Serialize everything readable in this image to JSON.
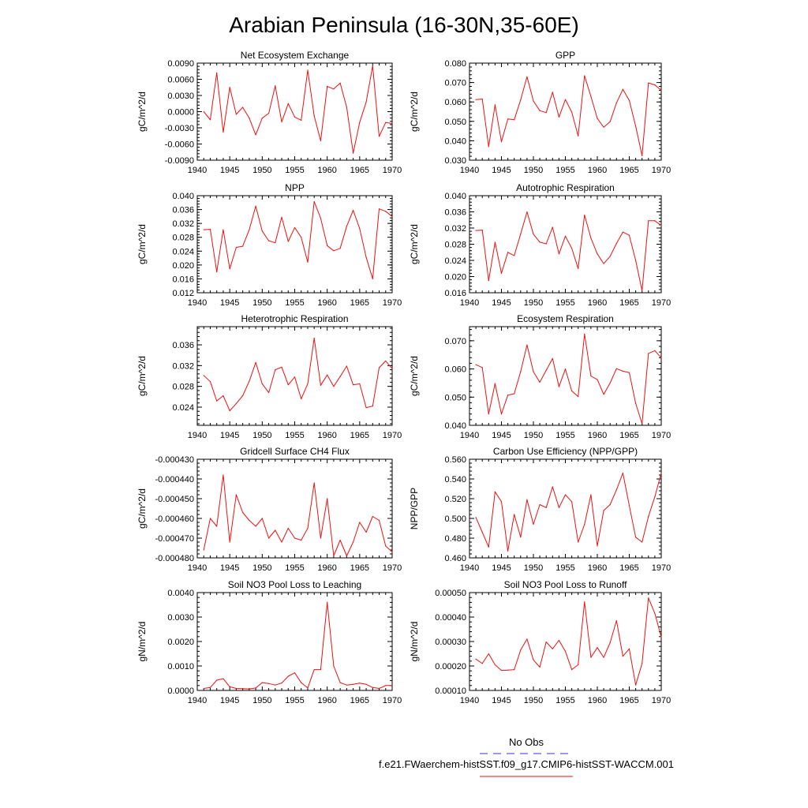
{
  "figure": {
    "title": "Arabian Peninsula (16-30N,35-60E)",
    "legend": [
      {
        "label": "No Obs",
        "color": "#3333cc",
        "dash": true
      },
      {
        "label": "f.e21.FWaerchem-histSST.f09_g17.CMIP6-histSST-WACCM.001",
        "color": "#ee1111",
        "dash": false
      }
    ]
  },
  "chart_data": [
    {
      "type": "line",
      "title": "Net Ecosystem Exchange",
      "ylabel": "gC/m^2/d",
      "xlim": [
        1940,
        1970
      ],
      "ylim": [
        -0.009,
        0.009
      ],
      "xticks": [
        "1940",
        "1945",
        "1950",
        "1955",
        "1960",
        "1965",
        "1970"
      ],
      "yticks": [
        "-0.0090",
        "-0.0060",
        "-0.0030",
        "0.0000",
        "0.0030",
        "0.0060",
        "0.0090"
      ],
      "ytick_values": [
        -0.009,
        -0.006,
        -0.003,
        0,
        0.003,
        0.006,
        0.009
      ],
      "x": [
        1941,
        1942,
        1943,
        1944,
        1945,
        1946,
        1947,
        1948,
        1949,
        1950,
        1951,
        1952,
        1953,
        1954,
        1955,
        1956,
        1957,
        1958,
        1959,
        1960,
        1961,
        1962,
        1963,
        1964,
        1965,
        1966,
        1967,
        1968,
        1969,
        1970
      ],
      "series": [
        {
          "values": [
            0.0,
            -0.0015,
            0.0072,
            -0.0038,
            0.0045,
            -0.0005,
            0.0008,
            -0.0012,
            -0.0043,
            -0.0012,
            -0.0003,
            0.0048,
            -0.0019,
            0.0015,
            -0.001,
            -0.0016,
            0.0077,
            -0.0008,
            -0.0054,
            0.0047,
            0.0042,
            0.0053,
            0.0008,
            -0.0077,
            -0.002,
            0.0018,
            0.0085,
            -0.0046,
            -0.002,
            -0.0022
          ],
          "color": "#ee1111"
        }
      ]
    },
    {
      "type": "line",
      "title": "GPP",
      "ylabel": "gC/m^2/d",
      "xlim": [
        1940,
        1970
      ],
      "ylim": [
        0.03,
        0.08
      ],
      "xticks": [
        "1940",
        "1945",
        "1950",
        "1955",
        "1960",
        "1965",
        "1970"
      ],
      "yticks": [
        "0.030",
        "0.040",
        "0.050",
        "0.060",
        "0.070",
        "0.080"
      ],
      "ytick_values": [
        0.03,
        0.04,
        0.05,
        0.06,
        0.07,
        0.08
      ],
      "x": [
        1941,
        1942,
        1943,
        1944,
        1945,
        1946,
        1947,
        1948,
        1949,
        1950,
        1951,
        1952,
        1953,
        1954,
        1955,
        1956,
        1957,
        1958,
        1959,
        1960,
        1961,
        1962,
        1963,
        1964,
        1965,
        1966,
        1967,
        1968,
        1969,
        1970
      ],
      "series": [
        {
          "values": [
            0.0612,
            0.0615,
            0.037,
            0.0585,
            0.0395,
            0.0512,
            0.0508,
            0.061,
            0.073,
            0.0605,
            0.0555,
            0.0545,
            0.065,
            0.0522,
            0.0612,
            0.0548,
            0.0425,
            0.0735,
            0.0628,
            0.0515,
            0.047,
            0.0498,
            0.0595,
            0.0665,
            0.0608,
            0.0475,
            0.0323,
            0.0698,
            0.0688,
            0.066
          ],
          "color": "#ee1111"
        }
      ]
    },
    {
      "type": "line",
      "title": "NPP",
      "ylabel": "gC/m^2/d",
      "xlim": [
        1940,
        1970
      ],
      "ylim": [
        0.012,
        0.04
      ],
      "xticks": [
        "1940",
        "1945",
        "1950",
        "1955",
        "1960",
        "1965",
        "1970"
      ],
      "yticks": [
        "0.012",
        "0.016",
        "0.020",
        "0.024",
        "0.028",
        "0.032",
        "0.036",
        "0.040"
      ],
      "ytick_values": [
        0.012,
        0.016,
        0.02,
        0.024,
        0.028,
        0.032,
        0.036,
        0.04
      ],
      "x": [
        1941,
        1942,
        1943,
        1944,
        1945,
        1946,
        1947,
        1948,
        1949,
        1950,
        1951,
        1952,
        1953,
        1954,
        1955,
        1956,
        1957,
        1958,
        1959,
        1960,
        1961,
        1962,
        1963,
        1964,
        1965,
        1966,
        1967,
        1968,
        1969,
        1970
      ],
      "series": [
        {
          "values": [
            0.0302,
            0.0303,
            0.018,
            0.0302,
            0.0189,
            0.0251,
            0.0254,
            0.0302,
            0.037,
            0.0298,
            0.027,
            0.0264,
            0.0338,
            0.0268,
            0.0308,
            0.028,
            0.0208,
            0.0383,
            0.0335,
            0.0256,
            0.0241,
            0.0248,
            0.0312,
            0.0358,
            0.0305,
            0.0222,
            0.016,
            0.0362,
            0.0355,
            0.034
          ],
          "color": "#ee1111"
        }
      ]
    },
    {
      "type": "line",
      "title": "Autotrophic Respiration",
      "ylabel": "gC/m^2/d",
      "xlim": [
        1940,
        1970
      ],
      "ylim": [
        0.016,
        0.04
      ],
      "xticks": [
        "1940",
        "1945",
        "1950",
        "1955",
        "1960",
        "1965",
        "1970"
      ],
      "yticks": [
        "0.016",
        "0.020",
        "0.024",
        "0.028",
        "0.032",
        "0.036",
        "0.040"
      ],
      "ytick_values": [
        0.016,
        0.02,
        0.024,
        0.028,
        0.032,
        0.036,
        0.04
      ],
      "x": [
        1941,
        1942,
        1943,
        1944,
        1945,
        1946,
        1947,
        1948,
        1949,
        1950,
        1951,
        1952,
        1953,
        1954,
        1955,
        1956,
        1957,
        1958,
        1959,
        1960,
        1961,
        1962,
        1963,
        1964,
        1965,
        1966,
        1967,
        1968,
        1969,
        1970
      ],
      "series": [
        {
          "values": [
            0.0314,
            0.0315,
            0.019,
            0.0285,
            0.0208,
            0.026,
            0.0252,
            0.0305,
            0.036,
            0.0305,
            0.0285,
            0.0281,
            0.0322,
            0.0256,
            0.03,
            0.027,
            0.022,
            0.0352,
            0.0295,
            0.0256,
            0.0232,
            0.025,
            0.0282,
            0.031,
            0.0302,
            0.024,
            0.0165,
            0.0338,
            0.0338,
            0.0326
          ],
          "color": "#ee1111"
        }
      ]
    },
    {
      "type": "line",
      "title": "Heterotrophic Respiration",
      "ylabel": "gC/m^2/d",
      "xlim": [
        1940,
        1970
      ],
      "ylim": [
        0.0205,
        0.0395
      ],
      "xticks": [
        "1940",
        "1945",
        "1950",
        "1955",
        "1960",
        "1965",
        "1970"
      ],
      "yticks": [
        "0.024",
        "0.028",
        "0.032",
        "0.036"
      ],
      "ytick_values": [
        0.024,
        0.028,
        0.032,
        0.036
      ],
      "x": [
        1941,
        1942,
        1943,
        1944,
        1945,
        1946,
        1947,
        1948,
        1949,
        1950,
        1951,
        1952,
        1953,
        1954,
        1955,
        1956,
        1957,
        1958,
        1959,
        1960,
        1961,
        1962,
        1963,
        1964,
        1965,
        1966,
        1967,
        1968,
        1969,
        1970
      ],
      "series": [
        {
          "values": [
            0.0301,
            0.0289,
            0.0252,
            0.0262,
            0.0233,
            0.0247,
            0.0262,
            0.029,
            0.0326,
            0.0285,
            0.0268,
            0.0312,
            0.0317,
            0.0283,
            0.0298,
            0.0256,
            0.0285,
            0.0373,
            0.0282,
            0.0302,
            0.028,
            0.0299,
            0.0319,
            0.0283,
            0.0285,
            0.0239,
            0.0242,
            0.0316,
            0.0329,
            0.0314
          ],
          "color": "#ee1111"
        }
      ]
    },
    {
      "type": "line",
      "title": "Ecosystem Respiration",
      "ylabel": "gC/m^2/d",
      "xlim": [
        1940,
        1970
      ],
      "ylim": [
        0.04,
        0.075
      ],
      "xticks": [
        "1940",
        "1945",
        "1950",
        "1955",
        "1960",
        "1965",
        "1970"
      ],
      "yticks": [
        "0.040",
        "0.050",
        "0.060",
        "0.070"
      ],
      "ytick_values": [
        0.04,
        0.05,
        0.06,
        0.07
      ],
      "x": [
        1941,
        1942,
        1943,
        1944,
        1945,
        1946,
        1947,
        1948,
        1949,
        1950,
        1951,
        1952,
        1953,
        1954,
        1955,
        1956,
        1957,
        1958,
        1959,
        1960,
        1961,
        1962,
        1963,
        1964,
        1965,
        1966,
        1967,
        1968,
        1969,
        1970
      ],
      "series": [
        {
          "values": [
            0.0615,
            0.0605,
            0.044,
            0.0548,
            0.044,
            0.0507,
            0.0512,
            0.059,
            0.0685,
            0.059,
            0.0553,
            0.0595,
            0.0637,
            0.0537,
            0.06,
            0.0522,
            0.0502,
            0.0724,
            0.0575,
            0.0562,
            0.051,
            0.055,
            0.0601,
            0.0592,
            0.0587,
            0.0478,
            0.0406,
            0.0655,
            0.0665,
            0.064
          ],
          "color": "#ee1111"
        }
      ]
    },
    {
      "type": "line",
      "title": "Gridcell Surface CH4 Flux",
      "ylabel": "gC/m^2/d",
      "xlim": [
        1940,
        1970
      ],
      "ylim": [
        -0.00048,
        -0.00043
      ],
      "xticks": [
        "1940",
        "1945",
        "1950",
        "1955",
        "1960",
        "1965",
        "1970"
      ],
      "yticks": [
        "-0.000480",
        "-0.000470",
        "-0.000460",
        "-0.000450",
        "-0.000440",
        "-0.000430"
      ],
      "ytick_values": [
        -0.00048,
        -0.00047,
        -0.00046,
        -0.00045,
        -0.00044,
        -0.00043
      ],
      "x": [
        1941,
        1942,
        1943,
        1944,
        1945,
        1946,
        1947,
        1948,
        1949,
        1950,
        1951,
        1952,
        1953,
        1954,
        1955,
        1956,
        1957,
        1958,
        1959,
        1960,
        1961,
        1962,
        1963,
        1964,
        1965,
        1966,
        1967,
        1968,
        1969,
        1970
      ],
      "series": [
        {
          "values": [
            -0.000476,
            -0.00046,
            -0.000464,
            -0.000438,
            -0.000472,
            -0.000448,
            -0.000457,
            -0.000461,
            -0.000464,
            -0.00046,
            -0.00047,
            -0.000466,
            -0.000472,
            -0.000465,
            -0.00047,
            -0.000471,
            -0.000465,
            -0.000442,
            -0.00047,
            -0.00045,
            -0.000479,
            -0.000471,
            -0.000479,
            -0.000472,
            -0.000462,
            -0.000467,
            -0.000459,
            -0.000461,
            -0.000474,
            -0.000477
          ],
          "color": "#ee1111"
        }
      ]
    },
    {
      "type": "line",
      "title": "Carbon Use Efficiency (NPP/GPP)",
      "ylabel": "NPP/GPP",
      "xlim": [
        1940,
        1970
      ],
      "ylim": [
        0.46,
        0.56
      ],
      "xticks": [
        "1940",
        "1945",
        "1950",
        "1955",
        "1960",
        "1965",
        "1970"
      ],
      "yticks": [
        "0.460",
        "0.480",
        "0.500",
        "0.520",
        "0.540",
        "0.560"
      ],
      "ytick_values": [
        0.46,
        0.48,
        0.5,
        0.52,
        0.54,
        0.56
      ],
      "x": [
        1941,
        1942,
        1943,
        1944,
        1945,
        1946,
        1947,
        1948,
        1949,
        1950,
        1951,
        1952,
        1953,
        1954,
        1955,
        1956,
        1957,
        1958,
        1959,
        1960,
        1961,
        1962,
        1963,
        1964,
        1965,
        1966,
        1967,
        1968,
        1969,
        1970
      ],
      "series": [
        {
          "values": [
            0.501,
            0.486,
            0.471,
            0.527,
            0.517,
            0.467,
            0.504,
            0.481,
            0.519,
            0.494,
            0.514,
            0.511,
            0.532,
            0.511,
            0.524,
            0.517,
            0.476,
            0.494,
            0.524,
            0.472,
            0.508,
            0.514,
            0.529,
            0.546,
            0.513,
            0.481,
            0.476,
            0.502,
            0.522,
            0.546
          ],
          "color": "#ee1111"
        }
      ]
    },
    {
      "type": "line",
      "title": "Soil NO3 Pool Loss to Leaching",
      "ylabel": "gN/m^2/d",
      "xlim": [
        1940,
        1970
      ],
      "ylim": [
        0.0,
        0.004
      ],
      "xticks": [
        "1940",
        "1945",
        "1950",
        "1955",
        "1960",
        "1965",
        "1970"
      ],
      "yticks": [
        "0.0000",
        "0.0010",
        "0.0020",
        "0.0030",
        "0.0040"
      ],
      "ytick_values": [
        0.0,
        0.001,
        0.002,
        0.003,
        0.004
      ],
      "x": [
        1941,
        1942,
        1943,
        1944,
        1945,
        1946,
        1947,
        1948,
        1949,
        1950,
        1951,
        1952,
        1953,
        1954,
        1955,
        1956,
        1957,
        1958,
        1959,
        1960,
        1961,
        1962,
        1963,
        1964,
        1965,
        1966,
        1967,
        1968,
        1969,
        1970
      ],
      "series": [
        {
          "values": [
            8e-05,
            0.00012,
            0.00042,
            0.00048,
            0.00015,
            8e-05,
            7e-05,
            6e-05,
            0.0001,
            0.00032,
            0.00028,
            0.00022,
            0.0003,
            0.00058,
            0.00072,
            0.00032,
            0.0001,
            0.00085,
            0.00085,
            0.0036,
            0.001,
            0.00032,
            0.00022,
            0.00025,
            0.0003,
            0.00025,
            0.00012,
            8e-05,
            0.0002,
            0.0002
          ],
          "color": "#ee1111"
        }
      ]
    },
    {
      "type": "line",
      "title": "Soil NO3 Pool Loss to Runoff",
      "ylabel": "gN/m^2/d",
      "xlim": [
        1940,
        1970
      ],
      "ylim": [
        0.0001,
        0.0005
      ],
      "xticks": [
        "1940",
        "1945",
        "1950",
        "1955",
        "1960",
        "1965",
        "1970"
      ],
      "yticks": [
        "0.00010",
        "0.00020",
        "0.00030",
        "0.00040",
        "0.00050"
      ],
      "ytick_values": [
        0.0001,
        0.0002,
        0.0003,
        0.0004,
        0.0005
      ],
      "x": [
        1941,
        1942,
        1943,
        1944,
        1945,
        1946,
        1947,
        1948,
        1949,
        1950,
        1951,
        1952,
        1953,
        1954,
        1955,
        1956,
        1957,
        1958,
        1959,
        1960,
        1961,
        1962,
        1963,
        1964,
        1965,
        1966,
        1967,
        1968,
        1969,
        1970
      ],
      "series": [
        {
          "values": [
            0.000228,
            0.00021,
            0.00025,
            0.000205,
            0.000182,
            0.000183,
            0.000185,
            0.000265,
            0.00031,
            0.000225,
            0.000195,
            0.000298,
            0.00027,
            0.000305,
            0.00026,
            0.000185,
            0.000205,
            0.000462,
            0.000235,
            0.000275,
            0.000235,
            0.000295,
            0.000385,
            0.00024,
            0.00027,
            0.000122,
            0.00021,
            0.000478,
            0.000415,
            0.000318
          ],
          "color": "#ee1111"
        }
      ]
    }
  ]
}
